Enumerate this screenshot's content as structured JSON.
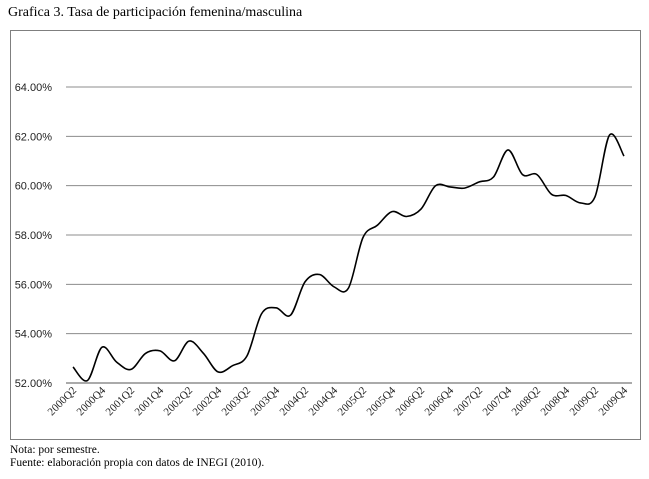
{
  "title": "Grafica 3. Tasa de participación femenina/masculina",
  "notes": {
    "line1": "Nota: por semestre.",
    "line2": "Fuente: elaboración propia con datos de INEGI (2010)."
  },
  "colors": {
    "line": "#000000",
    "grid": "#8c8c8c",
    "frame": "#7f7f7f"
  },
  "chart_data": {
    "type": "line",
    "title": "Grafica 3. Tasa de participación femenina/masculina",
    "xlabel": "",
    "ylabel": "",
    "ylim": [
      52,
      64
    ],
    "yticks": [
      52,
      54,
      56,
      58,
      60,
      62,
      64
    ],
    "ytick_labels": [
      "52.00%",
      "54.00%",
      "56.00%",
      "58.00%",
      "60.00%",
      "62.00%",
      "64.00%"
    ],
    "grid": true,
    "legend": "none",
    "x": [
      "2000Q2",
      "2000Q3",
      "2000Q4",
      "2001Q1",
      "2001Q2",
      "2001Q3",
      "2001Q4",
      "2002Q1",
      "2002Q2",
      "2002Q3",
      "2002Q4",
      "2003Q1",
      "2003Q2",
      "2003Q3",
      "2003Q4",
      "2004Q1",
      "2004Q2",
      "2004Q3",
      "2004Q4",
      "2005Q1",
      "2005Q2",
      "2005Q3",
      "2005Q4",
      "2006Q1",
      "2006Q2",
      "2006Q3",
      "2006Q4",
      "2007Q1",
      "2007Q2",
      "2007Q3",
      "2007Q4",
      "2008Q1",
      "2008Q2",
      "2008Q3",
      "2008Q4",
      "2009Q1",
      "2009Q2",
      "2009Q3",
      "2009Q4"
    ],
    "xtick_labels": [
      "2000Q2",
      "2000Q4",
      "2001Q2",
      "2001Q4",
      "2002Q2",
      "2002Q4",
      "2003Q2",
      "2003Q4",
      "2004Q2",
      "2004Q4",
      "2005Q2",
      "2005Q4",
      "2006Q2",
      "2006Q4",
      "2007Q2",
      "2007Q4",
      "2008Q2",
      "2008Q4",
      "2009Q2",
      "2009Q4"
    ],
    "series": [
      {
        "values": [
          52.65,
          52.1,
          53.45,
          52.85,
          52.55,
          53.2,
          53.3,
          52.9,
          53.7,
          53.2,
          52.45,
          52.7,
          53.1,
          54.8,
          55.05,
          54.75,
          56.1,
          56.4,
          55.9,
          55.85,
          57.9,
          58.4,
          58.95,
          58.75,
          59.05,
          60.0,
          59.95,
          59.9,
          60.15,
          60.35,
          61.45,
          60.45,
          60.45,
          59.65,
          59.6,
          59.3,
          59.55,
          62.05,
          61.2
        ]
      }
    ]
  }
}
